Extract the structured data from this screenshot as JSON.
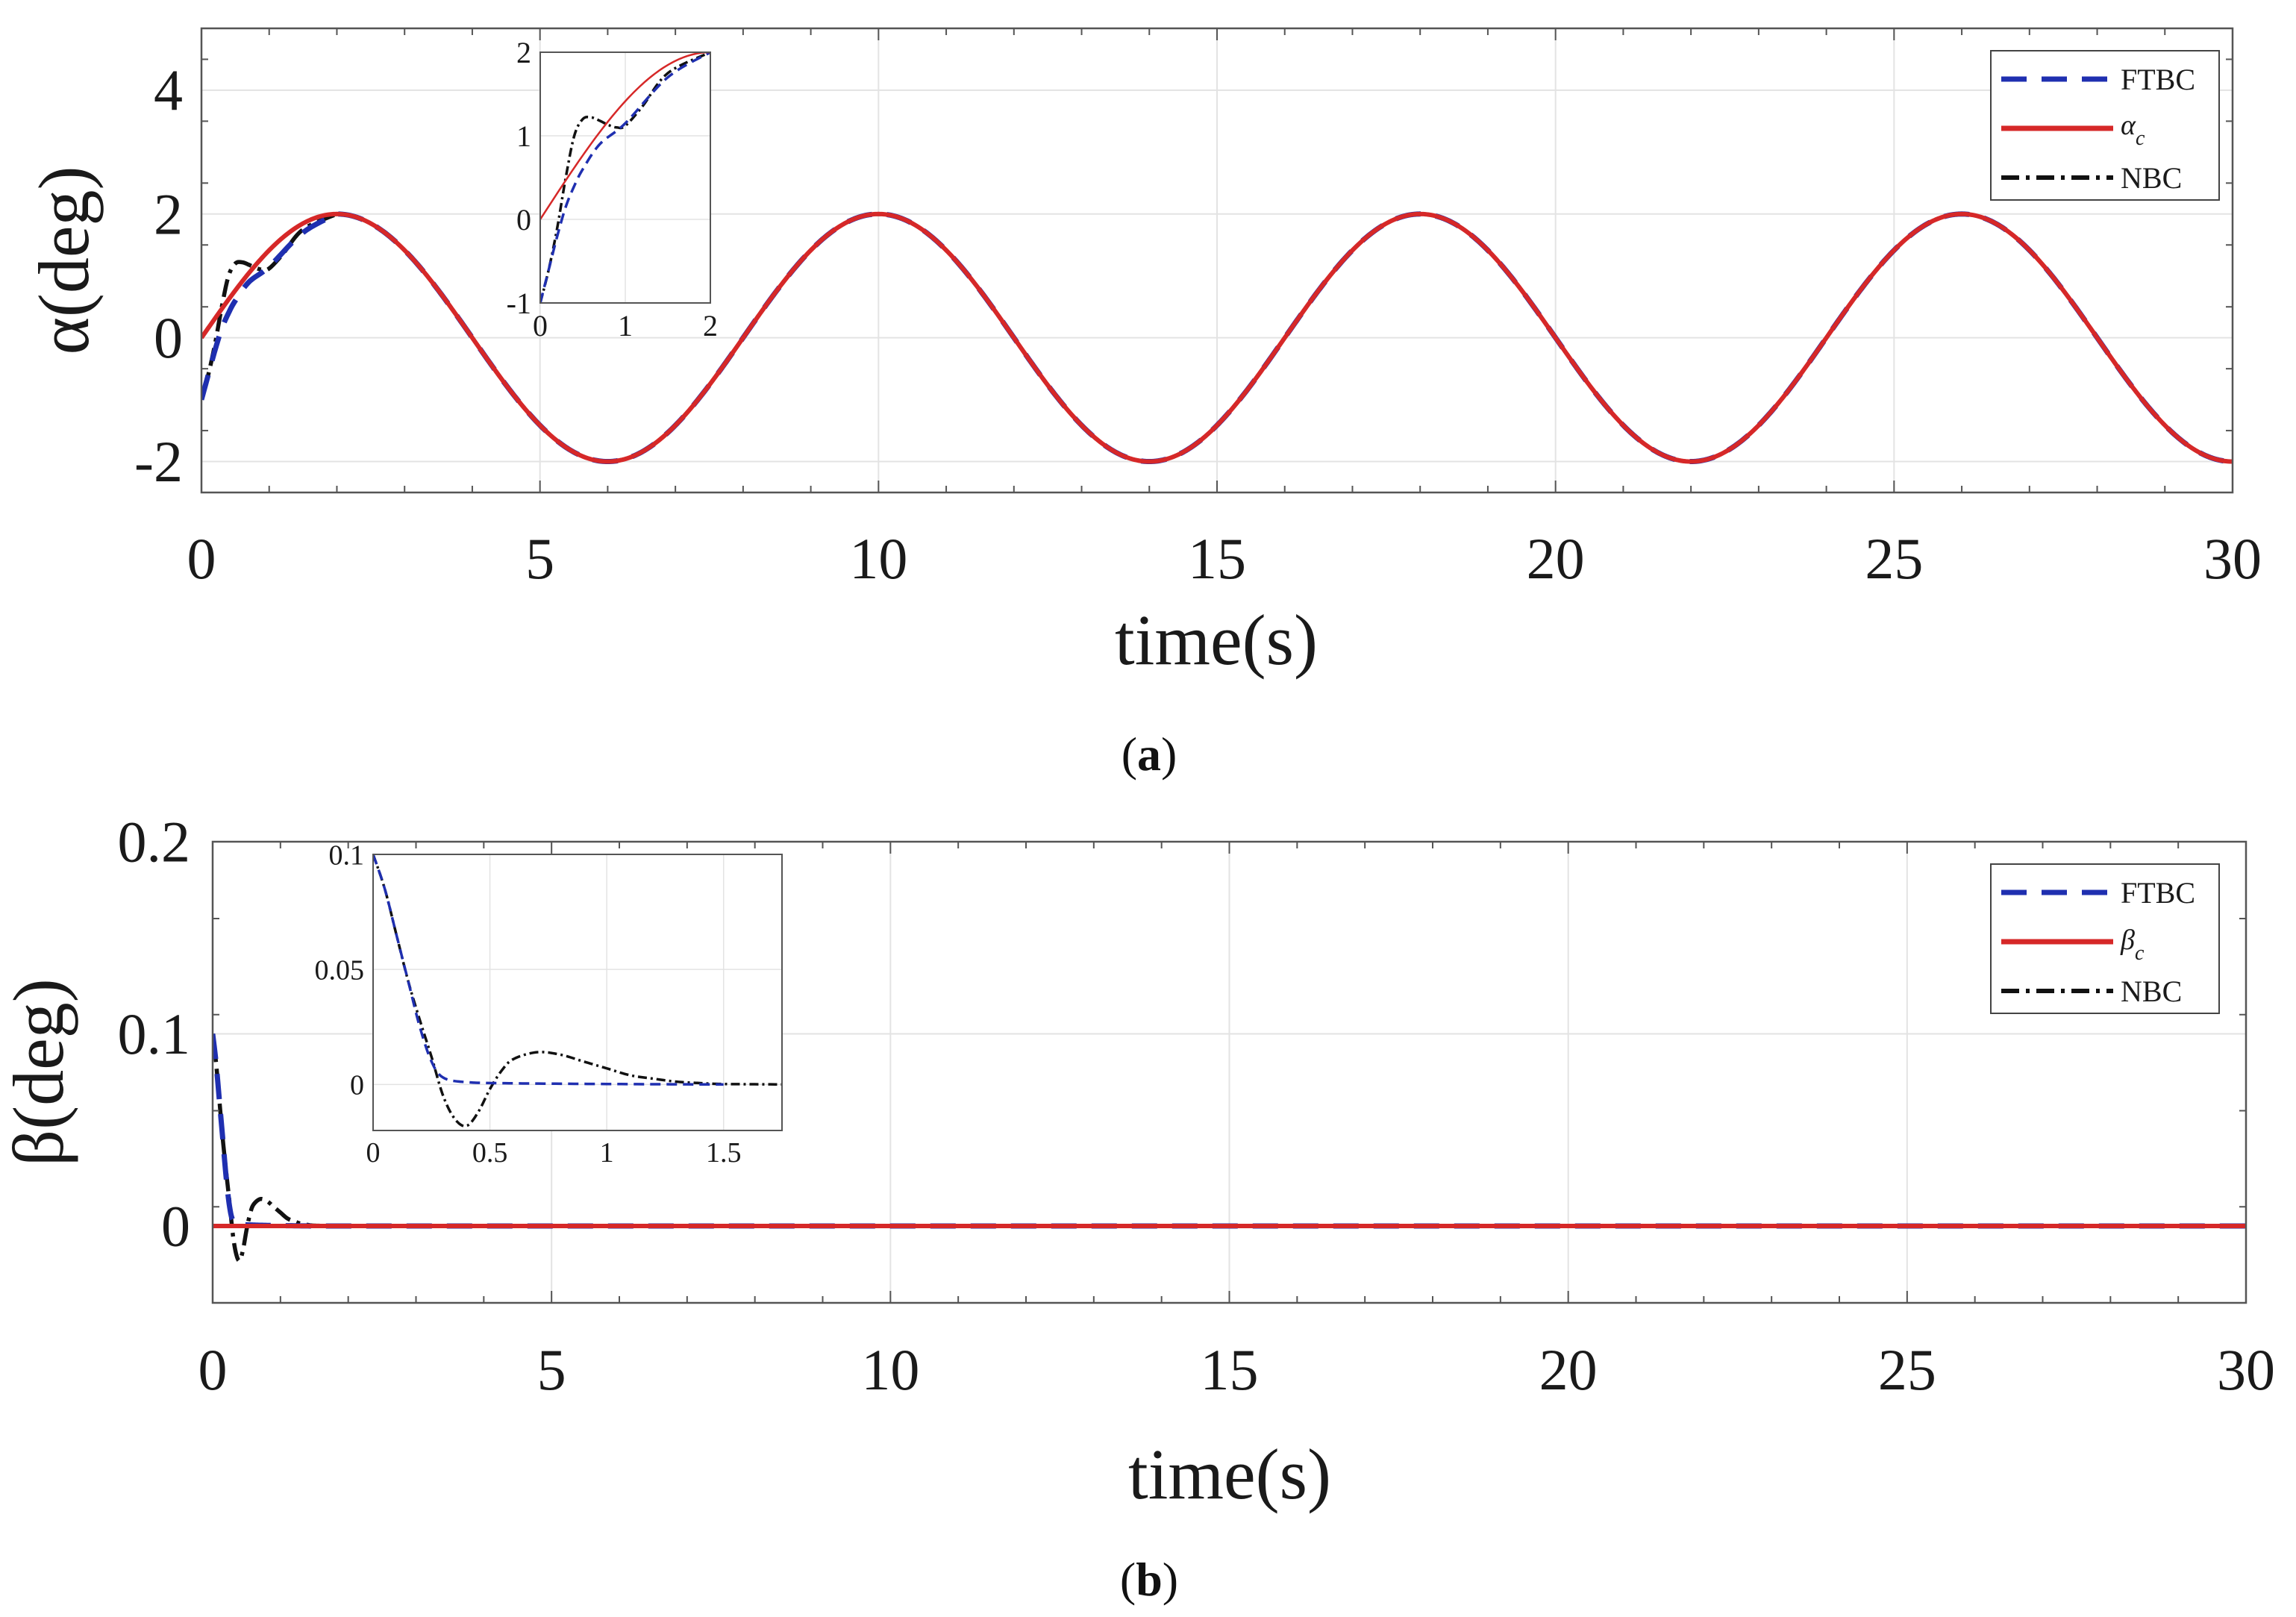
{
  "figure": {
    "caption_a": {
      "open": "(",
      "letter": "a",
      "close": ")"
    },
    "caption_b": {
      "open": "(",
      "letter": "b",
      "close": ")"
    }
  },
  "colors": {
    "ftbc": "#1f2fb0",
    "ref": "#d62828",
    "nbc": "#111111",
    "grid": "#e3e3e3",
    "axis": "#555555"
  },
  "chart_data": [
    {
      "id": "alpha",
      "type": "line",
      "panel": "a",
      "title": "",
      "xlabel": "time(s)",
      "ylabel": "α(deg)",
      "xlim": [
        0,
        30
      ],
      "ylim": [
        -2.5,
        5
      ],
      "xticks": [
        0,
        5,
        10,
        15,
        20,
        25,
        30
      ],
      "yticks": [
        -2,
        0,
        2,
        4
      ],
      "ytick_labels": [
        "-2",
        "0",
        "2",
        "4"
      ],
      "grid": true,
      "legend_position": "top-right",
      "legend": [
        {
          "key": "ftbc",
          "label": "FTBC",
          "sub": "",
          "style": "dashed"
        },
        {
          "key": "ref",
          "label": "α",
          "sub": "c",
          "style": "solid"
        },
        {
          "key": "nbc",
          "label": "NBC",
          "sub": "",
          "style": "dashdot"
        }
      ],
      "series": [
        {
          "name": "α_c",
          "key": "ref",
          "x": [
            0,
            2,
            4,
            6,
            8,
            10,
            12,
            14,
            16,
            18,
            20,
            22,
            24,
            26,
            28,
            30
          ],
          "values": [
            0,
            2,
            0,
            -2,
            0,
            2,
            0,
            -2,
            0,
            2,
            0,
            -2,
            0,
            2,
            0,
            -2
          ]
        },
        {
          "name": "FTBC",
          "key": "ftbc",
          "x": [
            0,
            0.1,
            0.2,
            0.3,
            0.4,
            0.5,
            0.7,
            1.0,
            1.5,
            2.0
          ],
          "values": [
            -1,
            -0.6,
            -0.2,
            0.15,
            0.4,
            0.6,
            0.9,
            1.15,
            1.7,
            2.0
          ]
        },
        {
          "name": "NBC",
          "key": "nbc",
          "x": [
            0,
            0.1,
            0.2,
            0.3,
            0.4,
            0.5,
            0.6,
            0.7,
            0.8,
            0.9,
            1.0,
            1.2,
            1.5,
            2.0
          ],
          "values": [
            -1,
            -0.6,
            -0.1,
            0.5,
            1.0,
            1.2,
            1.22,
            1.18,
            1.13,
            1.1,
            1.12,
            1.35,
            1.75,
            2.0
          ]
        }
      ],
      "inset": {
        "xlim": [
          0,
          2
        ],
        "ylim": [
          -1,
          2
        ],
        "xticks": [
          0,
          1,
          2
        ],
        "yticks": [
          -1,
          0,
          1,
          2
        ]
      }
    },
    {
      "id": "beta",
      "type": "line",
      "panel": "b",
      "title": "",
      "xlabel": "time(s)",
      "ylabel": "β(deg)",
      "xlim": [
        0,
        30
      ],
      "ylim": [
        -0.04,
        0.2
      ],
      "xticks": [
        0,
        5,
        10,
        15,
        20,
        25,
        30
      ],
      "yticks": [
        0,
        0.1,
        0.2
      ],
      "ytick_labels": [
        "0",
        "0.1",
        "0.2"
      ],
      "grid": true,
      "legend_position": "top-right",
      "legend": [
        {
          "key": "ftbc",
          "label": "FTBC",
          "sub": "",
          "style": "dashed"
        },
        {
          "key": "ref",
          "label": "β",
          "sub": "c",
          "style": "solid"
        },
        {
          "key": "nbc",
          "label": "NBC",
          "sub": "",
          "style": "dashdot"
        }
      ],
      "series": [
        {
          "name": "β_c",
          "key": "ref",
          "x": [
            0,
            30
          ],
          "values": [
            0,
            0
          ]
        },
        {
          "name": "FTBC",
          "key": "ftbc",
          "x": [
            0,
            0.05,
            0.1,
            0.15,
            0.2,
            0.25,
            0.3,
            0.4,
            0.6,
            1.0,
            1.5
          ],
          "values": [
            0.1,
            0.085,
            0.065,
            0.045,
            0.025,
            0.01,
            0.003,
            0.001,
            0.0005,
            0.0002,
            0
          ]
        },
        {
          "name": "NBC",
          "key": "nbc",
          "x": [
            0,
            0.05,
            0.1,
            0.15,
            0.2,
            0.25,
            0.3,
            0.35,
            0.4,
            0.45,
            0.5,
            0.55,
            0.6,
            0.7,
            0.8,
            0.9,
            1.0,
            1.1,
            1.2,
            1.3,
            1.4,
            1.5,
            1.8
          ],
          "values": [
            0.1,
            0.085,
            0.065,
            0.045,
            0.028,
            0.012,
            -0.005,
            -0.015,
            -0.018,
            -0.012,
            -0.002,
            0.006,
            0.011,
            0.014,
            0.013,
            0.01,
            0.007,
            0.004,
            0.0025,
            0.0012,
            0.0006,
            0.0002,
            0
          ]
        }
      ],
      "inset": {
        "xlim": [
          0,
          1.75
        ],
        "ylim": [
          -0.02,
          0.1
        ],
        "xticks": [
          0,
          0.5,
          1,
          1.5
        ],
        "yticks": [
          0,
          0.05,
          0.1
        ]
      }
    }
  ]
}
